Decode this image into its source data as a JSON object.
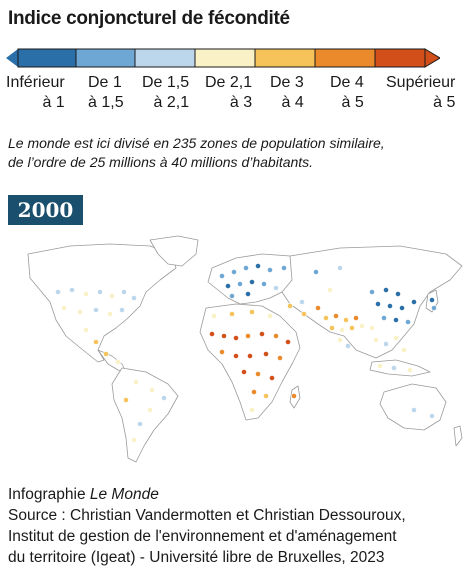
{
  "header": {
    "title": "Indice conjoncturel de fécondité"
  },
  "legend": {
    "classes": [
      {
        "line1": "Inférieur",
        "line2": "à 1",
        "color": "#2a6fa8"
      },
      {
        "line1": "De 1",
        "line2": "à 1,5",
        "color": "#6ea7d3"
      },
      {
        "line1": "De 1,5",
        "line2": "à 2,1",
        "color": "#bcd7ec"
      },
      {
        "line1": "De 2,1",
        "line2": "à 3",
        "color": "#fbf1c7"
      },
      {
        "line1": "De 3",
        "line2": "à 4",
        "color": "#f6c25a"
      },
      {
        "line1": "De 4",
        "line2": "à 5",
        "color": "#eb8a2a"
      },
      {
        "line1": "Supérieur",
        "line2": "à 5",
        "color": "#d24f19"
      }
    ]
  },
  "caption": {
    "line1": "Le monde est ici divisé en 235 zones de population similaire,",
    "line2": "de l’ordre de 25 millions à 40 millions d’habitants."
  },
  "map": {
    "year": "2000",
    "land_color": "#ffffff",
    "border_color": "#9a9a9a"
  },
  "footer": {
    "infographie_prefix": "Infographie ",
    "infographie_brand": "Le Monde",
    "source_line1": "Source : Christian Vandermotten et Christian Dessouroux,",
    "source_line2": "Institut de gestion de l'environnement et d'aménagement",
    "source_line3": "du territoire (Igeat) - Université libre de Bruxelles, 2023"
  }
}
